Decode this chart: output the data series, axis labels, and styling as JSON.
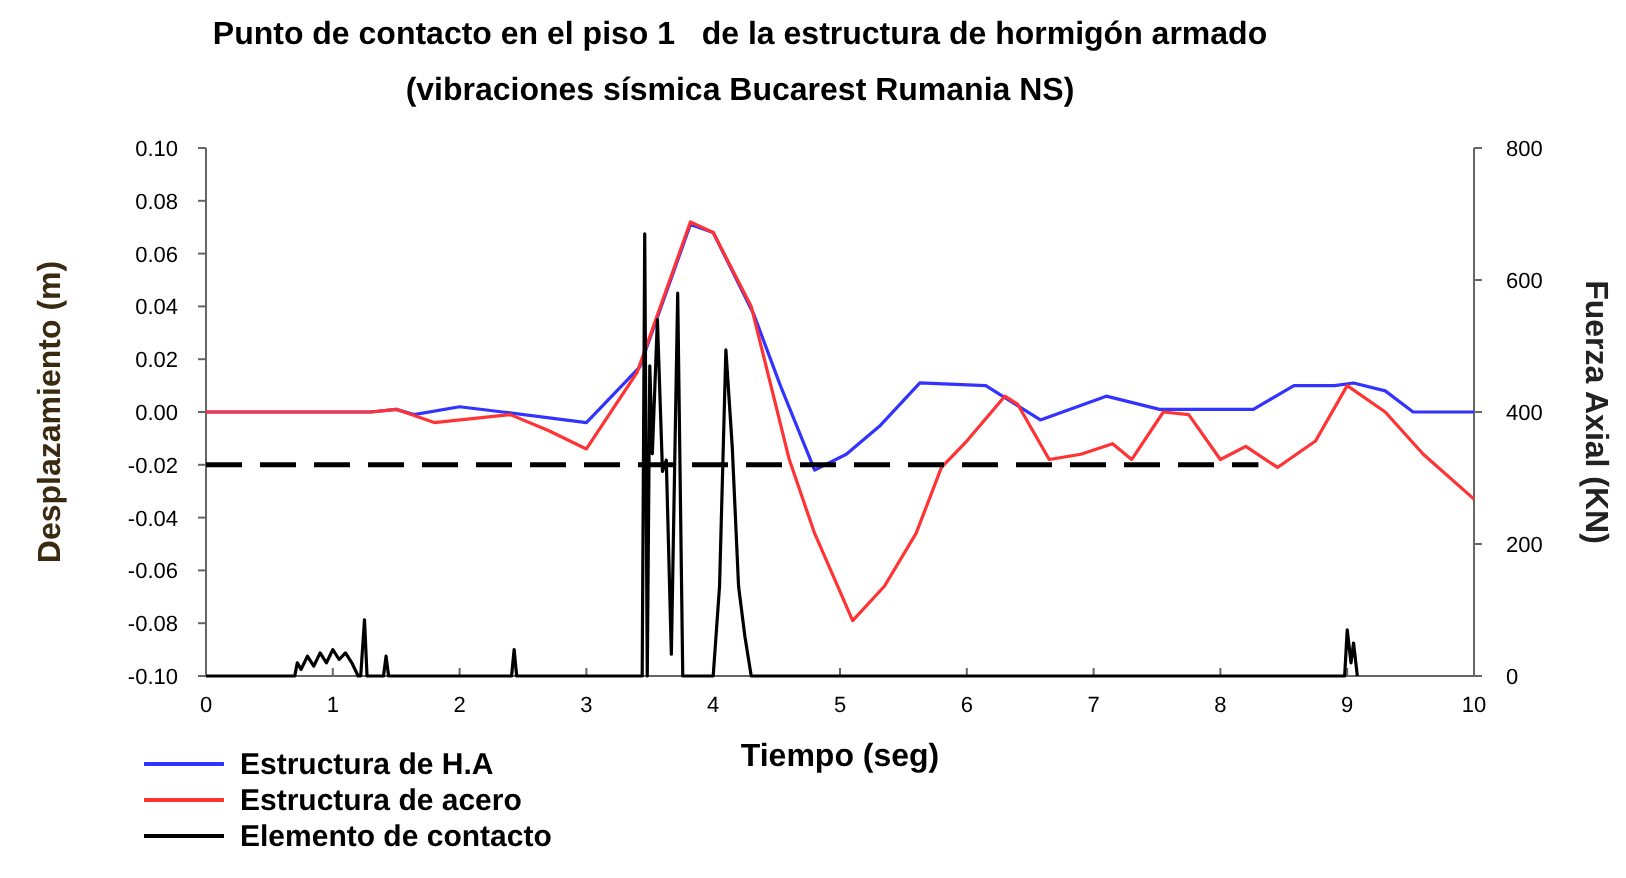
{
  "chart_data": {
    "type": "line",
    "title": "Punto de contacto en el piso 1   de la estructura de hormigón armado",
    "subtitle": "(vibraciones sísmica Bucarest Rumania NS)",
    "xlabel": "Tiempo (seg)",
    "ylabel": "Desplazamiento (m)",
    "y2label": "Fuerza Axial (KN)",
    "xlim": [
      0,
      10
    ],
    "xticks": [
      0,
      1,
      2,
      3,
      4,
      5,
      6,
      7,
      8,
      9,
      10
    ],
    "ylim": [
      -0.1,
      0.1
    ],
    "yticks": [
      {
        "value": -0.1,
        "label": "-0.10"
      },
      {
        "value": -0.08,
        "label": "-0.08"
      },
      {
        "value": -0.06,
        "label": "-0.06"
      },
      {
        "value": -0.04,
        "label": "-0.04"
      },
      {
        "value": -0.02,
        "label": "-0.02"
      },
      {
        "value": 0,
        "label": "0.00"
      },
      {
        "value": 0.02,
        "label": "0.02"
      },
      {
        "value": 0.04,
        "label": "0.04"
      },
      {
        "value": 0.06,
        "label": "0.06"
      },
      {
        "value": 0.08,
        "label": "0.08"
      },
      {
        "value": 0.1,
        "label": "0.10"
      }
    ],
    "y2lim": [
      0,
      800
    ],
    "y2ticks": [
      0,
      200,
      400,
      600,
      800
    ],
    "grid": false,
    "legend": "bottom left",
    "line_style": "solid",
    "series": [
      {
        "name": "Estructura de H.A",
        "color": "#3333ff",
        "x": [
          0,
          1.3,
          1.5,
          1.64,
          2.0,
          2.34,
          3.0,
          3.42,
          3.82,
          4.0,
          4.32,
          4.53,
          4.8,
          5.05,
          5.32,
          5.63,
          6.15,
          6.58,
          7.1,
          7.52,
          8.26,
          8.58,
          8.9,
          9.05,
          9.3,
          9.52,
          10
        ],
        "values": [
          0,
          0,
          0.001,
          -0.001,
          0.002,
          0,
          -0.004,
          0.017,
          0.071,
          0.068,
          0.037,
          0.01,
          -0.022,
          -0.016,
          -0.005,
          0.011,
          0.01,
          -0.003,
          0.006,
          0.001,
          0.001,
          0.01,
          0.01,
          0.011,
          0.008,
          0,
          0
        ]
      },
      {
        "name": "Estructura de acero",
        "color": "#ff3333",
        "x": [
          0,
          1.3,
          1.5,
          1.8,
          2.4,
          2.7,
          3.0,
          3.4,
          3.82,
          4.0,
          4.3,
          4.6,
          4.8,
          5.1,
          5.35,
          5.6,
          5.8,
          6.0,
          6.3,
          6.4,
          6.65,
          6.9,
          7.15,
          7.3,
          7.55,
          7.75,
          8.0,
          8.2,
          8.45,
          8.75,
          9.0,
          9.3,
          9.6,
          10
        ],
        "values": [
          0,
          0,
          0.001,
          -0.004,
          -0.001,
          -0.007,
          -0.014,
          0.015,
          0.072,
          0.068,
          0.04,
          -0.018,
          -0.046,
          -0.079,
          -0.066,
          -0.046,
          -0.021,
          -0.011,
          0.006,
          0.003,
          -0.018,
          -0.016,
          -0.012,
          -0.018,
          0,
          -0.001,
          -0.018,
          -0.013,
          -0.021,
          -0.011,
          0.01,
          0,
          -0.016,
          -0.033
        ]
      },
      {
        "name": "Elemento de contacto",
        "color": "#000000",
        "axis": "y2",
        "x": [
          0,
          0.7,
          0.72,
          0.75,
          0.8,
          0.85,
          0.9,
          0.95,
          1.0,
          1.05,
          1.1,
          1.15,
          1.2,
          1.22,
          1.25,
          1.27,
          1.3,
          1.4,
          1.42,
          1.44,
          2.41,
          2.43,
          2.45,
          3.44,
          3.46,
          3.48,
          3.5,
          3.52,
          3.56,
          3.6,
          3.63,
          3.67,
          3.72,
          3.76,
          3.8,
          3.83,
          3.86,
          3.88,
          3.92,
          4.0,
          4.05,
          4.1,
          4.15,
          4.2,
          4.25,
          4.3,
          4.35,
          8.98,
          9.0,
          9.03,
          9.05,
          9.08
        ],
        "values": [
          0,
          0,
          20,
          10,
          30,
          15,
          35,
          20,
          40,
          25,
          35,
          20,
          0,
          0,
          85,
          0,
          0,
          0,
          30,
          0,
          0,
          40,
          0,
          0,
          670,
          0,
          470,
          337,
          540,
          310,
          327,
          33,
          580,
          0,
          0,
          0,
          0,
          0,
          0,
          0,
          136,
          494,
          348,
          136,
          60,
          0,
          0,
          0,
          70,
          20,
          50,
          0
        ]
      },
      {
        "color": "#000000",
        "line_style": "dashed",
        "x": [
          0,
          8.3
        ],
        "values": [
          -0.02,
          -0.02
        ]
      }
    ]
  }
}
